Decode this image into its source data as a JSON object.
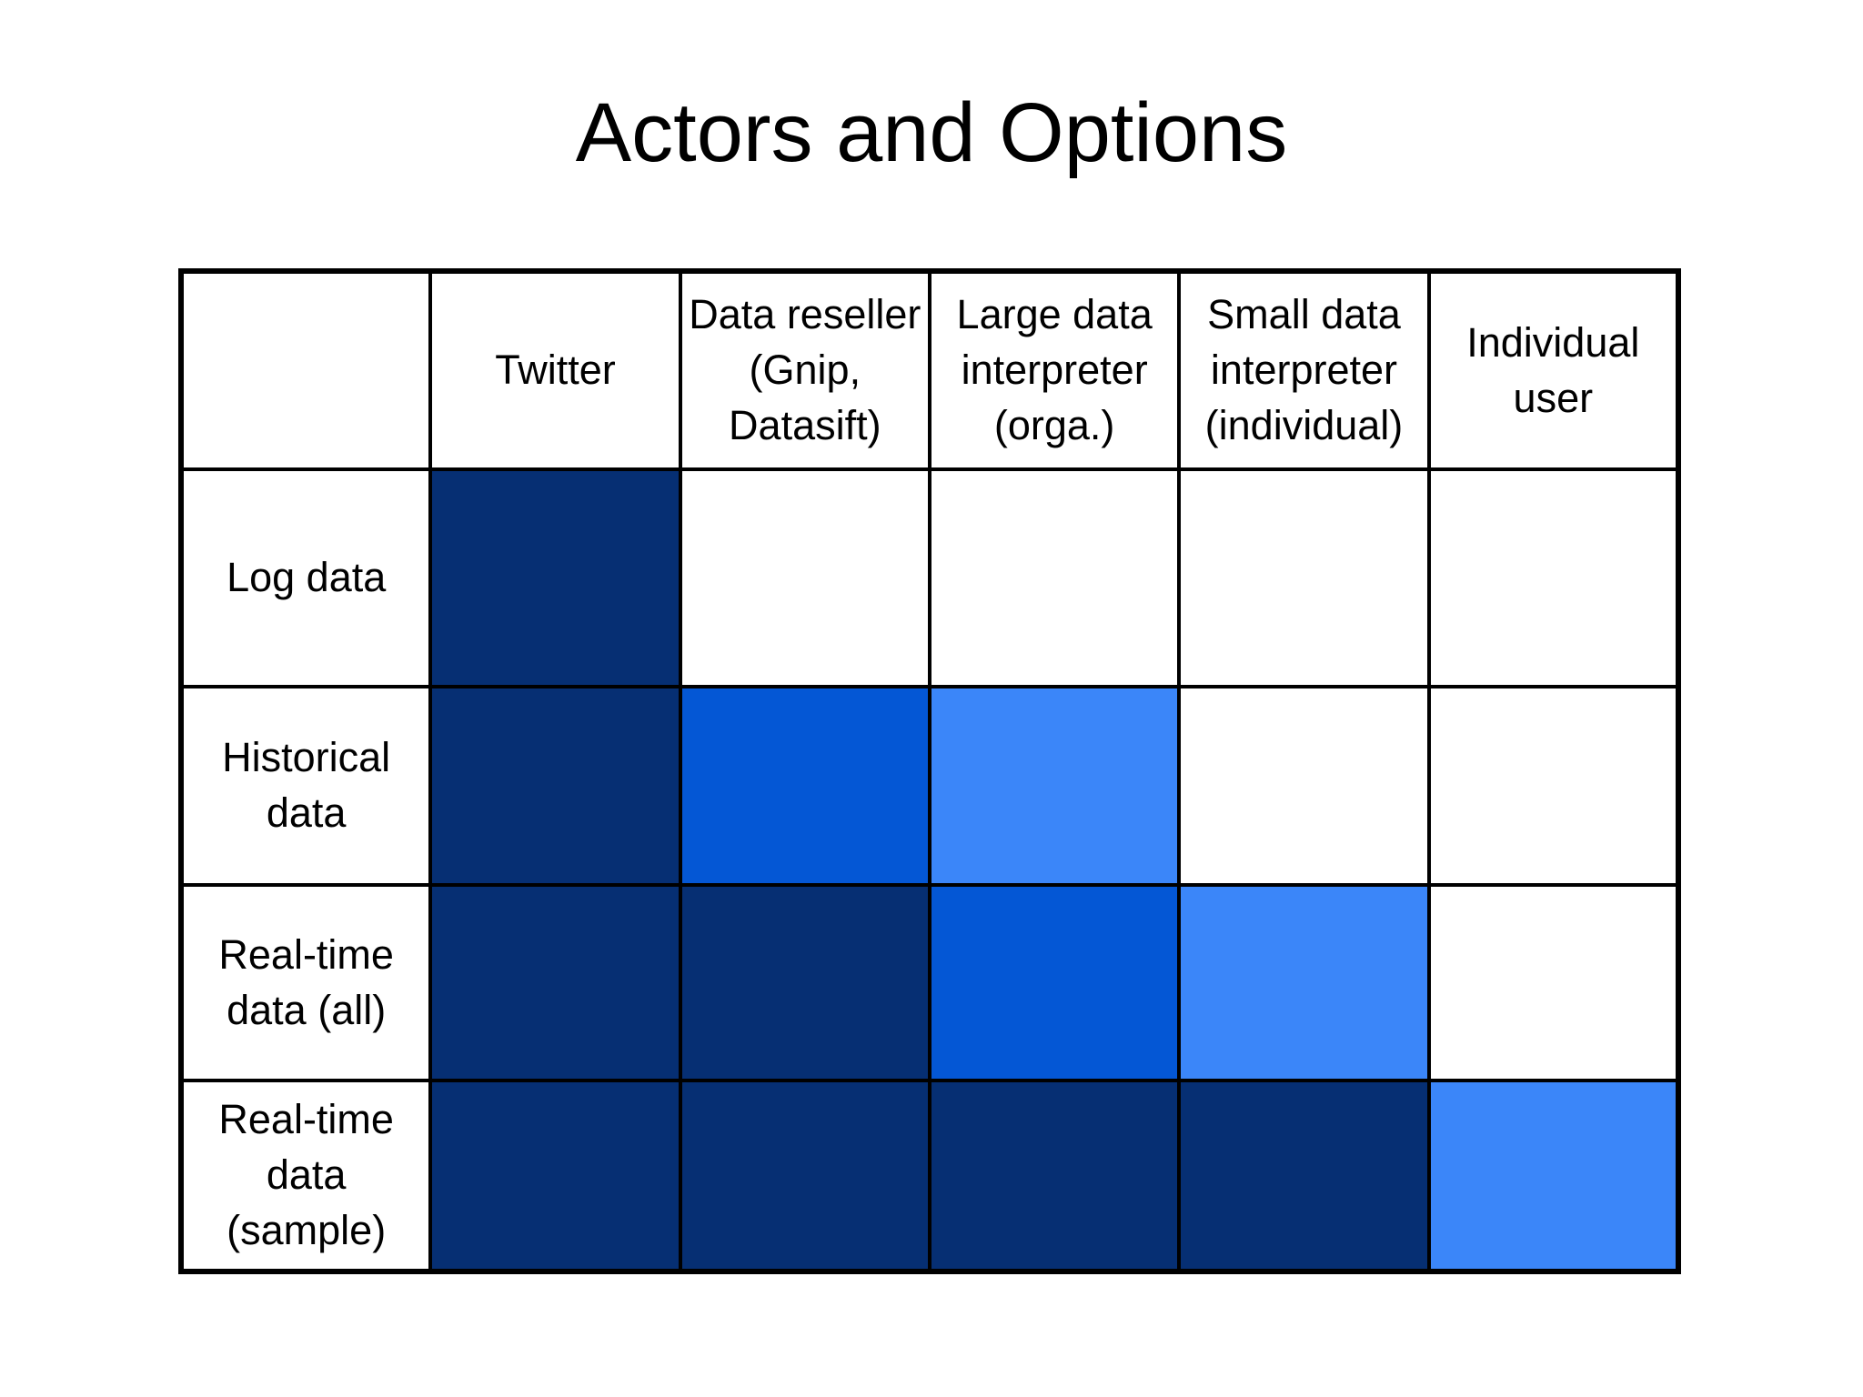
{
  "slide": {
    "title": "Actors and Options"
  },
  "colors": {
    "background": "#FFFFFF",
    "text": "#000000",
    "grid": "#000000",
    "cell_empty": "#FFFFFF",
    "cell_light": "#3B86F9",
    "cell_medium": "#0457D5",
    "cell_dark": "#062F73"
  },
  "chart_data": {
    "type": "heatmap",
    "title": "Actors and Options",
    "x_categories": [
      "Twitter",
      "Data reseller (Gnip, Datasift)",
      "Large data interpreter (orga.)",
      "Small data interpreter (individual)",
      "Individual user"
    ],
    "y_categories": [
      "Log data",
      "Historical data",
      "Real-time data (all)",
      "Real-time data (sample)"
    ],
    "values": [
      [
        3,
        0,
        0,
        0,
        0
      ],
      [
        3,
        2,
        1,
        0,
        0
      ],
      [
        3,
        3,
        2,
        1,
        0
      ],
      [
        3,
        3,
        3,
        3,
        1
      ]
    ],
    "value_legend": {
      "0": "empty (white)",
      "1": "light blue",
      "2": "medium blue",
      "3": "dark navy"
    },
    "legend_position": "none",
    "grid": true
  },
  "table": {
    "corner_label": "",
    "col_headers": [
      "Twitter",
      "Data reseller\n(Gnip,\nDatasift)",
      "Large data\ninterpreter\n(orga.)",
      "Small data\ninterpreter\n(individual)",
      "Individual\nuser"
    ],
    "row_headers": [
      "Log data",
      "Historical\ndata",
      "Real-time\ndata (all)",
      "Real-time\ndata\n(sample)"
    ]
  }
}
